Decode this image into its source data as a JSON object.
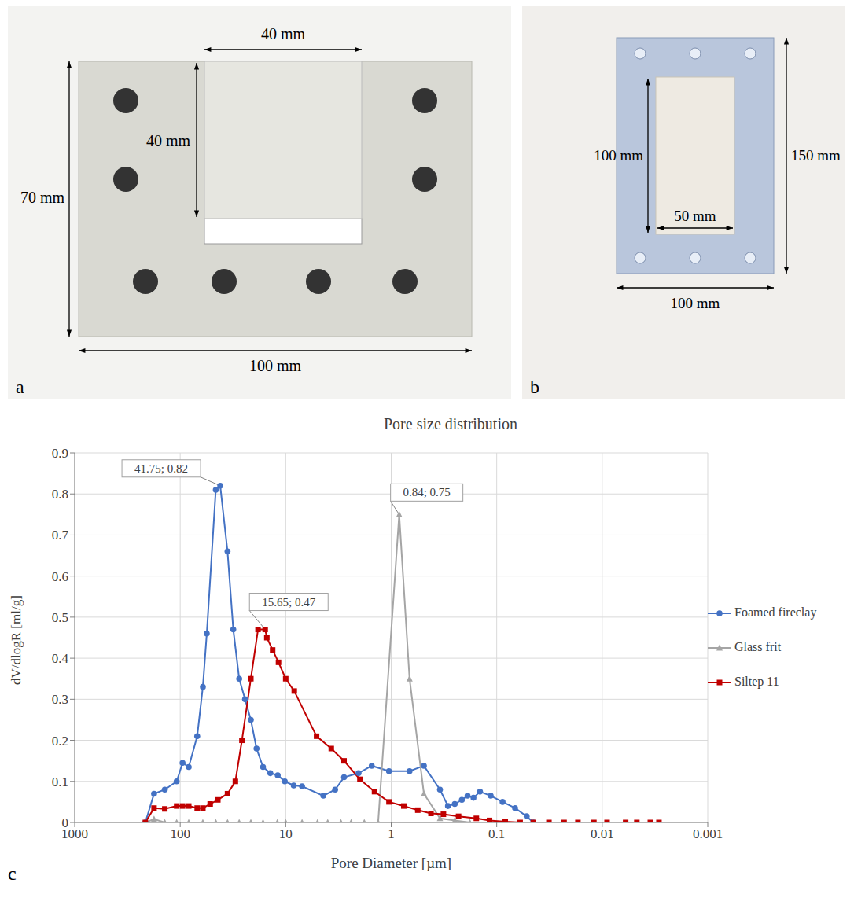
{
  "panels": [
    {
      "letter": "a",
      "width_label": "100 mm",
      "height_label": "70 mm",
      "sample_width_label": "40 mm",
      "sample_height_label": "40 mm"
    },
    {
      "letter": "b",
      "width_label": "100 mm",
      "height_label": "150 mm",
      "sample_width_label": "50 mm",
      "sample_height_label": "100 mm"
    },
    {
      "letter": "c"
    }
  ],
  "chart_data": {
    "type": "line",
    "title": "Pore size distribution",
    "x_label": "Pore Diameter [µm]",
    "y_label": "dV/dlogR [ml/g]",
    "log": "x",
    "xlim": [
      1000,
      0.001
    ],
    "xticks": [
      1000,
      100,
      10,
      1,
      0.1,
      0.01,
      0.001
    ],
    "ylim": [
      0,
      0.9
    ],
    "yticks": [
      0,
      0.1,
      0.2,
      0.3,
      0.4,
      0.5,
      0.6,
      0.7,
      0.8,
      0.9
    ],
    "grid": true,
    "legend": "right",
    "series": [
      {
        "name": "Foamed fireclay",
        "color": "#4472c4",
        "marker": "circle",
        "x": [
          214,
          177,
          140,
          108,
          95,
          83,
          69,
          61,
          56,
          46,
          41.75,
          35.6,
          31.4,
          27.6,
          24.3,
          21.4,
          18.9,
          16.4,
          14.0,
          11.9,
          10.2,
          8.4,
          7.0,
          4.4,
          3.4,
          2.8,
          2.04,
          1.53,
          1.05,
          0.67,
          0.49,
          0.345,
          0.29,
          0.25,
          0.214,
          0.189,
          0.166,
          0.144,
          0.114,
          0.088,
          0.067,
          0.052,
          0.045
        ],
        "values": [
          0,
          0.07,
          0.08,
          0.1,
          0.145,
          0.135,
          0.21,
          0.33,
          0.46,
          0.81,
          0.82,
          0.66,
          0.47,
          0.35,
          0.3,
          0.25,
          0.18,
          0.135,
          0.12,
          0.115,
          0.1,
          0.09,
          0.088,
          0.065,
          0.08,
          0.11,
          0.12,
          0.138,
          0.125,
          0.125,
          0.138,
          0.08,
          0.04,
          0.045,
          0.055,
          0.065,
          0.06,
          0.075,
          0.065,
          0.05,
          0.035,
          0.015,
          0
        ]
      },
      {
        "name": "Glass frit",
        "color": "#a5a5a5",
        "marker": "triangle",
        "x": [
          214,
          177,
          140,
          108,
          83,
          61,
          46,
          35.6,
          27.6,
          21.4,
          16.4,
          12,
          10,
          7,
          5,
          4,
          3,
          2.4,
          1.8,
          1.33,
          0.84,
          0.67,
          0.49,
          0.345,
          0.25,
          0.18
        ],
        "values": [
          0,
          0.008,
          0,
          0,
          0,
          0,
          0,
          0,
          0,
          0,
          0,
          0,
          0,
          0,
          0,
          0,
          0,
          0,
          0,
          0,
          0.75,
          0.35,
          0.07,
          0.01,
          0.005,
          0
        ]
      },
      {
        "name": "Siltep 11",
        "color": "#c00000",
        "marker": "square",
        "x": [
          214,
          177,
          140,
          108,
          95,
          83,
          69,
          61,
          52,
          44,
          35.6,
          30,
          26,
          21.4,
          18.3,
          15.65,
          15.1,
          13.3,
          11.7,
          10,
          8.3,
          5.1,
          3.7,
          2.8,
          1.98,
          1.44,
          1.05,
          0.76,
          0.56,
          0.42,
          0.32,
          0.23,
          0.156,
          0.117,
          0.083,
          0.06,
          0.045,
          0.032,
          0.023,
          0.017,
          0.012,
          0.009,
          0.006,
          0.0047,
          0.0035,
          0.0029
        ],
        "values": [
          0,
          0.035,
          0.033,
          0.04,
          0.04,
          0.04,
          0.035,
          0.035,
          0.045,
          0.055,
          0.07,
          0.1,
          0.2,
          0.35,
          0.47,
          0.47,
          0.45,
          0.42,
          0.39,
          0.35,
          0.32,
          0.21,
          0.18,
          0.15,
          0.105,
          0.075,
          0.05,
          0.04,
          0.03,
          0.022,
          0.02,
          0.015,
          0.01,
          0.005,
          0.002,
          0,
          0,
          0,
          0,
          0,
          0,
          0,
          0,
          0,
          0,
          0
        ]
      }
    ],
    "annotations": [
      {
        "text": "41.75; 0.82",
        "x": 41.75,
        "y": 0.82
      },
      {
        "text": "0.84; 0.75",
        "x": 0.84,
        "y": 0.75
      },
      {
        "text": "15.65; 0.47",
        "x": 15.65,
        "y": 0.47
      }
    ]
  }
}
